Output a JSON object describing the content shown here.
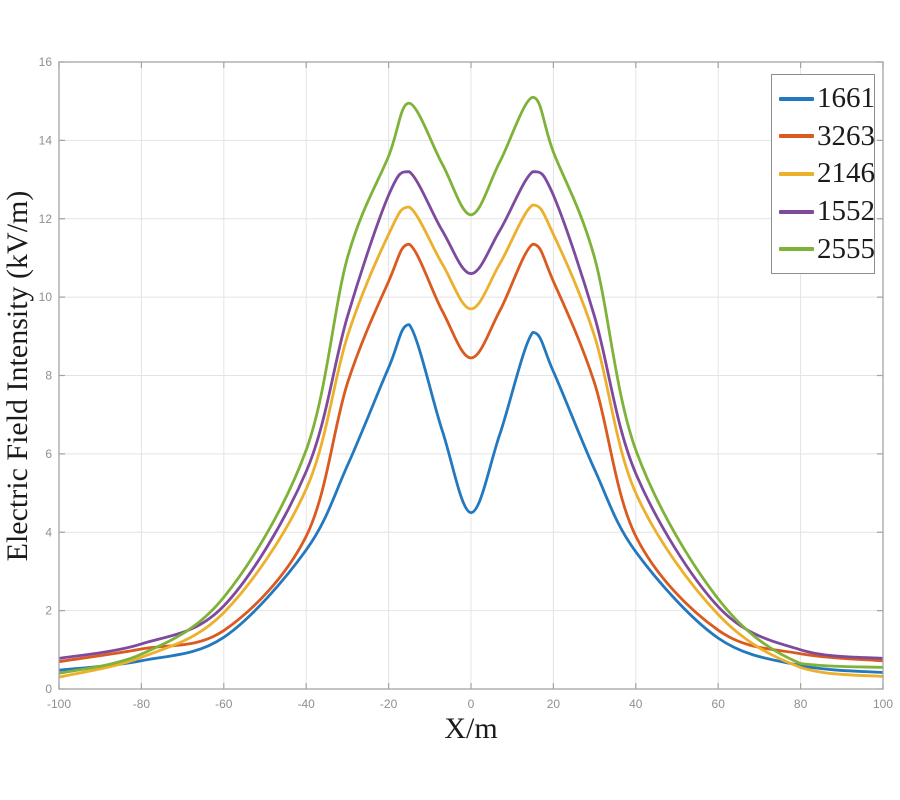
{
  "chart_data": {
    "type": "line",
    "title": "",
    "xlabel": "X/m",
    "ylabel": "Electric Field Intensity (kV/m)",
    "xlim": [
      -100,
      100
    ],
    "ylim": [
      0,
      16
    ],
    "x_ticks": [
      -100,
      -80,
      -60,
      -40,
      -20,
      0,
      20,
      40,
      60,
      80,
      100
    ],
    "y_ticks": [
      0,
      2,
      4,
      6,
      8,
      10,
      12,
      14,
      16
    ],
    "grid": "on",
    "legend_position": "top-right",
    "x": [
      -100,
      -80,
      -60,
      -40,
      -30,
      -20,
      -15,
      -7,
      0,
      7,
      15,
      20,
      30,
      40,
      60,
      80,
      100
    ],
    "series": [
      {
        "name": "1661",
        "color": "#2379bf",
        "values": [
          0.48,
          0.72,
          1.32,
          3.55,
          5.7,
          8.2,
          9.3,
          6.6,
          4.5,
          6.5,
          9.1,
          8.1,
          5.6,
          3.5,
          1.3,
          0.6,
          0.42
        ]
      },
      {
        "name": "3263",
        "color": "#da5a1f",
        "values": [
          0.7,
          1.02,
          1.49,
          3.9,
          7.8,
          10.4,
          11.35,
          9.65,
          8.45,
          9.65,
          11.35,
          10.4,
          7.8,
          3.9,
          1.5,
          0.9,
          0.72
        ]
      },
      {
        "name": "2146",
        "color": "#ecb02c",
        "values": [
          0.3,
          0.81,
          1.95,
          5.1,
          9.0,
          11.6,
          12.3,
          10.85,
          9.7,
          10.85,
          12.35,
          11.6,
          9.0,
          5.0,
          1.9,
          0.55,
          0.32
        ]
      },
      {
        "name": "1552",
        "color": "#7e4a9e",
        "values": [
          0.78,
          1.15,
          2.12,
          5.55,
          9.5,
          12.6,
          13.2,
          11.7,
          10.6,
          11.7,
          13.2,
          12.6,
          9.5,
          5.5,
          2.1,
          1.0,
          0.78
        ]
      },
      {
        "name": "2555",
        "color": "#7fb239",
        "values": [
          0.4,
          0.89,
          2.34,
          6.1,
          11.0,
          13.6,
          14.95,
          13.4,
          12.1,
          13.45,
          15.1,
          13.7,
          11.0,
          6.1,
          2.3,
          0.65,
          0.55
        ]
      }
    ],
    "style": {
      "background": "#ffffff",
      "axis_box_color": "#a3a3a3",
      "grid_color": "#e4e4e4",
      "tick_label_color": "#8f8f8f",
      "text_color": "#1b1b1b"
    }
  }
}
